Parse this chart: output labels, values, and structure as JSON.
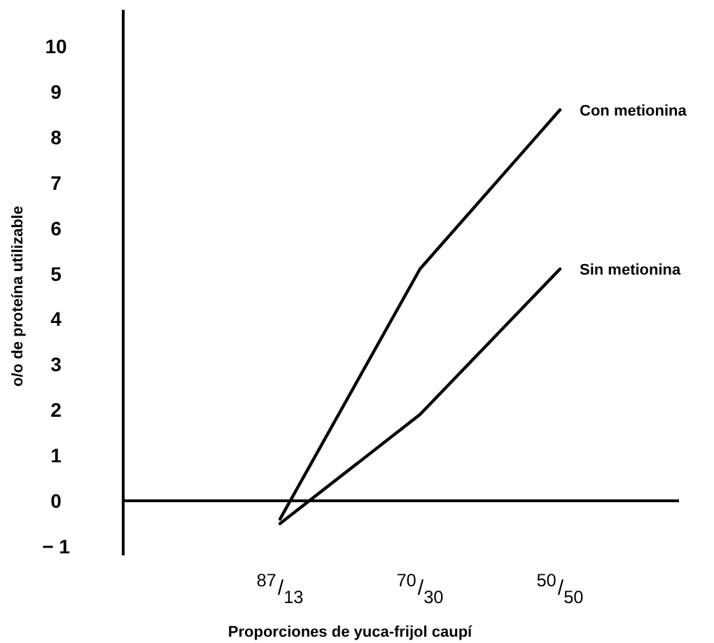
{
  "chart_data": {
    "type": "line",
    "xlabel": "Proporciones de yuca-frijol caupí",
    "ylabel": "o/o de proteína utilizable",
    "categories": [
      "$^{87}$/$_{13}$",
      "$^{70}$/$_{30}$",
      "$^{50}$/$_{50}$"
    ],
    "series": [
      {
        "name": "Con metionina",
        "color": "#000000",
        "values": [
          -0.4,
          5.1,
          8.6
        ]
      },
      {
        "name": "Sin metionina",
        "color": "#000000",
        "values": [
          -0.5,
          1.9,
          5.1
        ]
      }
    ],
    "ylim": [
      -1.2,
      10.8
    ],
    "yticks": [
      {
        "value": -1,
        "label": "− 1"
      },
      0,
      1,
      2,
      3,
      4,
      5,
      6,
      7,
      8,
      9,
      10
    ],
    "marker": "none",
    "line_style": "solid"
  }
}
